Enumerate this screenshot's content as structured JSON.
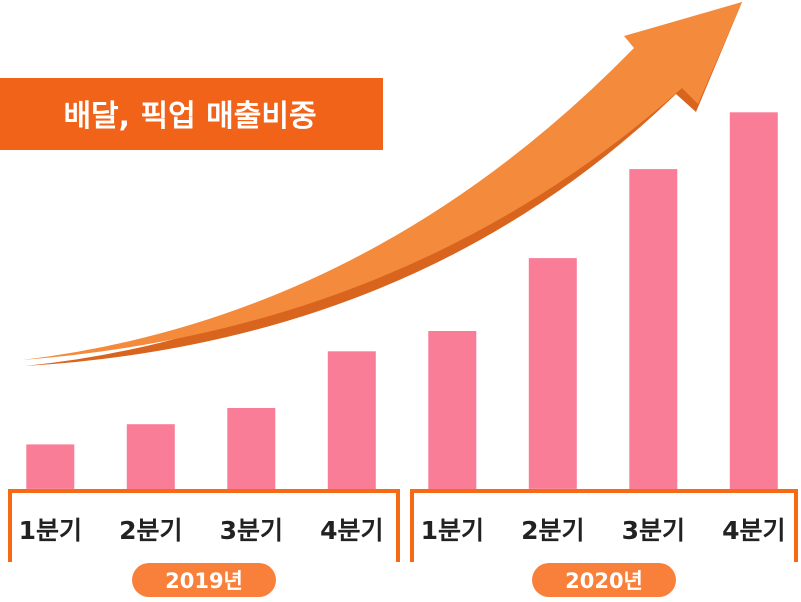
{
  "colors": {
    "bar": "#fa7d98",
    "accent": "#f56a12",
    "arrow_light": "#f48a3c",
    "arrow_dark": "#d8641e",
    "title_bg": "#f06318",
    "pill_bg": "#f9803a",
    "text": "#222222"
  },
  "chart_data": {
    "type": "bar",
    "title": "배달, 픽업 매출비중",
    "categories": [
      "1분기",
      "2분기",
      "3분기",
      "4분기",
      "1분기",
      "2분기",
      "3분기",
      "4분기"
    ],
    "groups": [
      {
        "label": "2019년",
        "start": 0,
        "count": 4
      },
      {
        "label": "2020년",
        "start": 4,
        "count": 4
      }
    ],
    "values": [
      11,
      16,
      20,
      34,
      39,
      57,
      79,
      93
    ],
    "ylim": [
      0,
      100
    ],
    "grid": false,
    "legend": "none",
    "trend_arrow": true
  }
}
